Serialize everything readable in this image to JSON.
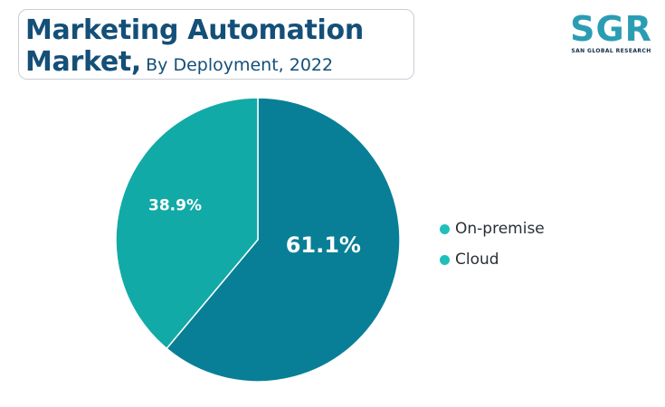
{
  "header": {
    "title_line1": "Marketing Automation",
    "title_market": "Market,",
    "title_sub": "By Deployment, 2022"
  },
  "logo": {
    "text": "SGR",
    "subtext": "SAN GLOBAL RESEARCH"
  },
  "chart_data": {
    "type": "pie",
    "title": "Marketing Automation Market, By Deployment, 2022",
    "categories": [
      "On-premise",
      "Cloud"
    ],
    "values": [
      61.1,
      38.9
    ],
    "labels": [
      "61.1%",
      "38.9%"
    ],
    "colors": [
      "#087f96",
      "#12aaa6"
    ],
    "legend_placement": "right",
    "start_angle_deg": 0,
    "direction": "clockwise"
  },
  "legend": {
    "items": [
      {
        "label": "On-premise",
        "color": "#1fbfba"
      },
      {
        "label": "Cloud",
        "color": "#1fbfba"
      }
    ]
  }
}
